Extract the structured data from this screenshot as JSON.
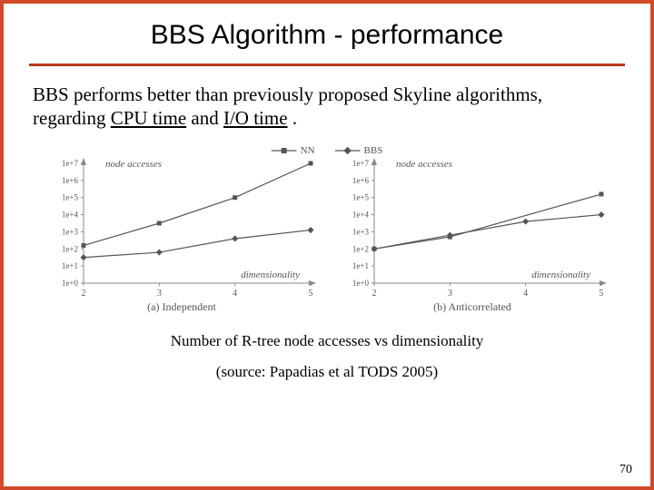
{
  "slide": {
    "title": "BBS Algorithm - performance",
    "body_pre": "BBS performs better than previously proposed Skyline algorithms, regarding",
    "body_u1": "CPU time",
    "body_mid": " and ",
    "body_u2": "I/O time",
    "body_post": ".",
    "caption1": "Number of R-tree node accesses vs dimensionality",
    "caption2": "(source: Papadias et al TODS 2005)",
    "page_number": "70"
  },
  "colors": {
    "frame": "#d14b2a",
    "rule": "#b8391f",
    "axis": "#888888",
    "text": "#000000",
    "tick_text": "#666666",
    "series": "#555555"
  },
  "legend": {
    "series": [
      {
        "name": "NN",
        "marker": "square"
      },
      {
        "name": "BBS",
        "marker": "diamond"
      }
    ]
  },
  "chart_left": {
    "type": "line",
    "y_label": "node accesses",
    "x_label": "dimensionality",
    "subcaption": "(a) Independent",
    "y_ticks_log_exp": [
      0,
      1,
      2,
      3,
      4,
      5,
      6,
      7
    ],
    "y_tick_labels": [
      "1e+0",
      "1e+1",
      "1e+2",
      "1e+3",
      "1e+4",
      "1e+5",
      "1e+6",
      "1e+7"
    ],
    "x_ticks": [
      2,
      3,
      4,
      5
    ],
    "xlim": [
      2,
      5
    ],
    "ylim_exp": [
      0,
      7
    ],
    "series": {
      "NN": {
        "marker": "square",
        "points": [
          [
            2,
            2.2
          ],
          [
            3,
            3.5
          ],
          [
            4,
            5.0
          ],
          [
            5,
            7.0
          ]
        ]
      },
      "BBS": {
        "marker": "diamond",
        "points": [
          [
            2,
            1.5
          ],
          [
            3,
            1.8
          ],
          [
            4,
            2.6
          ],
          [
            5,
            3.1
          ]
        ]
      }
    },
    "line_width": 1.2,
    "marker_size": 5,
    "axis_color": "#888888",
    "series_color": "#555555",
    "label_fontsize": 11,
    "tick_fontsize": 9
  },
  "chart_right": {
    "type": "line",
    "y_label": "node accesses",
    "x_label": "dimensionality",
    "subcaption": "(b) Anticorrelated",
    "y_ticks_log_exp": [
      0,
      1,
      2,
      3,
      4,
      5,
      6,
      7
    ],
    "y_tick_labels": [
      "1e+0",
      "1e+1",
      "1e+2",
      "1e+3",
      "1e+4",
      "1e+5",
      "1e+6",
      "1e+7"
    ],
    "x_ticks": [
      2,
      3,
      4,
      5
    ],
    "xlim": [
      2,
      5
    ],
    "ylim_exp": [
      0,
      7
    ],
    "series": {
      "NN": {
        "marker": "square",
        "points": [
          [
            2,
            2.0
          ],
          [
            3,
            2.7
          ],
          [
            5,
            5.2
          ]
        ]
      },
      "BBS": {
        "marker": "diamond",
        "points": [
          [
            2,
            2.0
          ],
          [
            3,
            2.8
          ],
          [
            4,
            3.6
          ],
          [
            5,
            4.0
          ]
        ]
      }
    },
    "line_width": 1.2,
    "marker_size": 5,
    "axis_color": "#888888",
    "series_color": "#555555",
    "label_fontsize": 11,
    "tick_fontsize": 9
  }
}
